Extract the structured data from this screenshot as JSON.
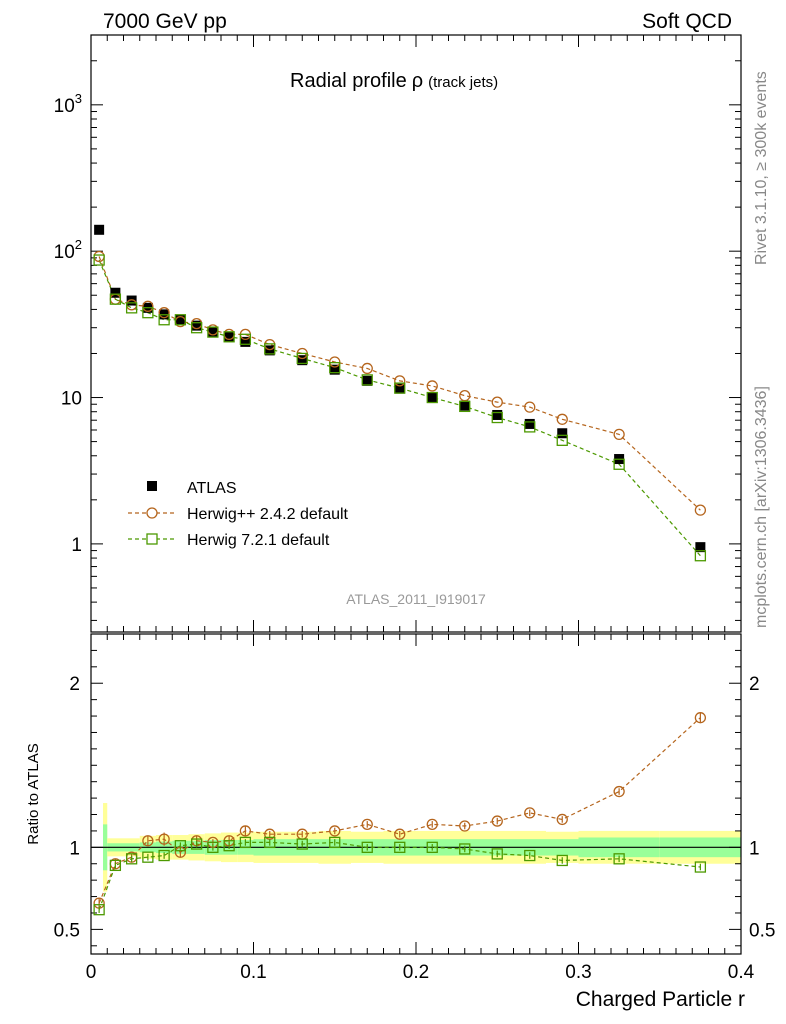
{
  "header": {
    "left": "7000 GeV pp",
    "right": "Soft QCD"
  },
  "side_labels": {
    "rivet": "Rivet 3.1.10, ≥ 300k events",
    "mcplots": "mcplots.cern.ch [arXiv:1306.3436]"
  },
  "chart_data": {
    "type": "scatter",
    "title": "Radial profile",
    "title_symbol": "ρ",
    "title_suffix": "(track jets)",
    "analysis_label": "ATLAS_2011_I919017",
    "xlabel": "Charged Particle r",
    "xlim": [
      0,
      0.4
    ],
    "x_ticks": [
      {
        "value": 0,
        "label": "0"
      },
      {
        "value": 0.1,
        "label": "0.1"
      },
      {
        "value": 0.2,
        "label": "0.2"
      },
      {
        "value": 0.3,
        "label": "0.3"
      },
      {
        "value": 0.4,
        "label": "0.4"
      }
    ],
    "main": {
      "yscale": "log",
      "ylim": [
        0.25,
        3000
      ],
      "y_ticks": [
        {
          "value": 1,
          "label": "1"
        },
        {
          "value": 10,
          "label": "10"
        },
        {
          "value": 100,
          "label": "10",
          "exp": "2"
        },
        {
          "value": 1000,
          "label": "10",
          "exp": "3"
        }
      ],
      "x": [
        0.005,
        0.015,
        0.025,
        0.035,
        0.045,
        0.055,
        0.065,
        0.075,
        0.085,
        0.095,
        0.11,
        0.13,
        0.15,
        0.17,
        0.19,
        0.21,
        0.23,
        0.25,
        0.27,
        0.29,
        0.325,
        0.375
      ],
      "series": [
        {
          "name": "ATLAS",
          "color": "#000000",
          "marker": "filled-square",
          "line": false,
          "values": [
            140,
            52,
            46,
            41,
            37,
            34,
            31,
            28,
            26,
            24,
            21,
            18,
            15.5,
            13,
            11.5,
            10,
            8.8,
            7.6,
            6.6,
            5.7,
            3.8,
            0.95
          ]
        },
        {
          "name": "Herwig++ 2.4.2 default",
          "color": "#b5651d",
          "marker": "open-circle",
          "line": true,
          "values": [
            92,
            47,
            43,
            42,
            38,
            33,
            32,
            29,
            27,
            27,
            23,
            20,
            17.5,
            15.8,
            13,
            12,
            10.3,
            9.3,
            8.6,
            7.1,
            5.6,
            1.7
          ]
        },
        {
          "name": "Herwig 7.2.1 default",
          "color": "#4c9900",
          "marker": "open-square",
          "line": true,
          "values": [
            87,
            47,
            41,
            38,
            34,
            34,
            30,
            28,
            26,
            25,
            21.5,
            18.5,
            16,
            13.2,
            11.6,
            10,
            8.7,
            7.3,
            6.3,
            5.1,
            3.5,
            0.83
          ]
        }
      ]
    },
    "ratio": {
      "ylabel": "Ratio to ATLAS",
      "ylim": [
        0.35,
        2.3
      ],
      "y_ticks": [
        {
          "value": 0.5,
          "label": "0.5"
        },
        {
          "value": 1,
          "label": "1"
        },
        {
          "value": 2,
          "label": "2"
        }
      ],
      "bins": [
        [
          0,
          0.01
        ],
        [
          0.01,
          0.02
        ],
        [
          0.02,
          0.03
        ],
        [
          0.03,
          0.04
        ],
        [
          0.04,
          0.05
        ],
        [
          0.05,
          0.06
        ],
        [
          0.06,
          0.07
        ],
        [
          0.07,
          0.08
        ],
        [
          0.08,
          0.09
        ],
        [
          0.09,
          0.1
        ],
        [
          0.1,
          0.12
        ],
        [
          0.12,
          0.14
        ],
        [
          0.14,
          0.16
        ],
        [
          0.16,
          0.18
        ],
        [
          0.18,
          0.2
        ],
        [
          0.2,
          0.22
        ],
        [
          0.22,
          0.24
        ],
        [
          0.24,
          0.26
        ],
        [
          0.26,
          0.28
        ],
        [
          0.28,
          0.3
        ],
        [
          0.3,
          0.35
        ],
        [
          0.35,
          0.4
        ]
      ],
      "band_outer": [
        0.27,
        0.055,
        0.055,
        0.07,
        0.075,
        0.075,
        0.08,
        0.085,
        0.09,
        0.09,
        0.095,
        0.095,
        0.1,
        0.095,
        0.1,
        0.1,
        0.1,
        0.1,
        0.1,
        0.095,
        0.1,
        0.1
      ],
      "band_inner": [
        0.14,
        0.025,
        0.025,
        0.03,
        0.035,
        0.04,
        0.04,
        0.045,
        0.045,
        0.045,
        0.05,
        0.05,
        0.05,
        0.05,
        0.05,
        0.05,
        0.05,
        0.05,
        0.05,
        0.05,
        0.06,
        0.06
      ],
      "band_outer_color": "#ffff99",
      "band_inner_color": "#99ff99",
      "series": [
        {
          "name": "Herwig++ 2.4.2 default",
          "color": "#b5651d",
          "marker": "open-circle",
          "values": [
            0.66,
            0.9,
            0.94,
            1.04,
            1.05,
            0.97,
            1.04,
            1.03,
            1.04,
            1.1,
            1.08,
            1.08,
            1.1,
            1.14,
            1.08,
            1.14,
            1.13,
            1.16,
            1.21,
            1.17,
            1.34,
            1.79
          ],
          "err": [
            0.03,
            0.03,
            0.02,
            0.03,
            0.04,
            0.03,
            0.03,
            0.02,
            0.03,
            0.03,
            0.02,
            0.02,
            0.02,
            0.02,
            0.02,
            0.02,
            0.02,
            0.02,
            0.02,
            0.02,
            0.02,
            0.03
          ]
        },
        {
          "name": "Herwig 7.2.1 default",
          "color": "#4c9900",
          "marker": "open-square",
          "values": [
            0.62,
            0.89,
            0.93,
            0.94,
            0.95,
            1.01,
            1.02,
            1.0,
            1.01,
            1.03,
            1.03,
            1.02,
            1.03,
            1.0,
            1.0,
            1.0,
            0.99,
            0.96,
            0.95,
            0.92,
            0.93,
            0.88
          ],
          "err": [
            0.02,
            0.02,
            0.02,
            0.02,
            0.02,
            0.02,
            0.02,
            0.02,
            0.02,
            0.02,
            0.02,
            0.02,
            0.02,
            0.02,
            0.02,
            0.02,
            0.02,
            0.02,
            0.02,
            0.02,
            0.02,
            0.02
          ]
        }
      ]
    }
  }
}
